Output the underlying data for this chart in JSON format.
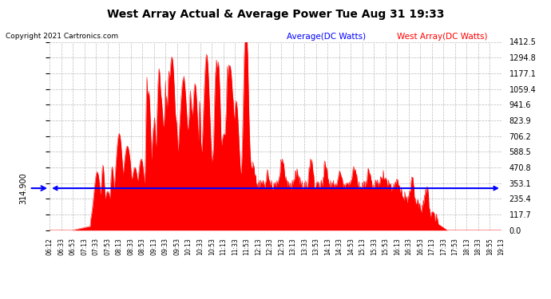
{
  "title": "West Array Actual & Average Power Tue Aug 31 19:33",
  "copyright": "Copyright 2021 Cartronics.com",
  "legend_avg": "Average(DC Watts)",
  "legend_west": "West Array(DC Watts)",
  "avg_value": 314.9,
  "ymin": 0.0,
  "ymax": 1412.5,
  "ytick_labels": [
    "0.0",
    "117.7",
    "235.4",
    "353.1",
    "470.8",
    "588.5",
    "706.2",
    "823.9",
    "941.6",
    "1059.4",
    "1177.1",
    "1294.8",
    "1412.5"
  ],
  "yticks": [
    0.0,
    117.7,
    235.4,
    353.1,
    470.8,
    588.5,
    706.2,
    823.9,
    941.6,
    1059.4,
    1177.1,
    1294.8,
    1412.5
  ],
  "bg_color": "#ffffff",
  "grid_color": "#bbbbbb",
  "fill_color": "#ff0000",
  "avg_line_color": "#0000ff",
  "title_color": "#000000",
  "copyright_color": "#000000",
  "legend_avg_color": "#0000ff",
  "legend_west_color": "#ff0000",
  "xtick_labels": [
    "06:12",
    "06:33",
    "06:53",
    "07:13",
    "07:33",
    "07:53",
    "08:13",
    "08:33",
    "08:53",
    "09:13",
    "09:33",
    "09:53",
    "10:13",
    "10:33",
    "10:53",
    "11:13",
    "11:33",
    "11:53",
    "12:13",
    "12:33",
    "12:53",
    "13:13",
    "13:33",
    "13:53",
    "14:13",
    "14:33",
    "14:53",
    "15:13",
    "15:33",
    "15:53",
    "16:13",
    "16:33",
    "16:53",
    "17:13",
    "17:33",
    "17:53",
    "18:13",
    "18:33",
    "18:55",
    "19:13"
  ]
}
